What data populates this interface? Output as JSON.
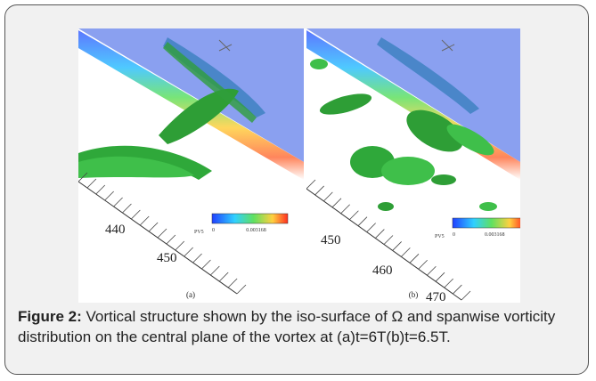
{
  "figure": {
    "panels": [
      {
        "label": "(a)",
        "axis_ticks": [
          "440",
          "450"
        ],
        "colorbar_title": "PV5",
        "colorbar_min": "0",
        "colorbar_max": "0.003168"
      },
      {
        "label": "(b)",
        "axis_ticks": [
          "450",
          "460",
          "470"
        ],
        "colorbar_title": "PV5",
        "colorbar_min": "0",
        "colorbar_max": "0.003168"
      }
    ],
    "caption": {
      "label": "Figure 2:",
      "text": "Vortical structure shown by the iso-surface of Ω and spanwise vorticity distribution on the central plane of the  vortex at (a)t=6T(b)t=6.5T."
    }
  }
}
